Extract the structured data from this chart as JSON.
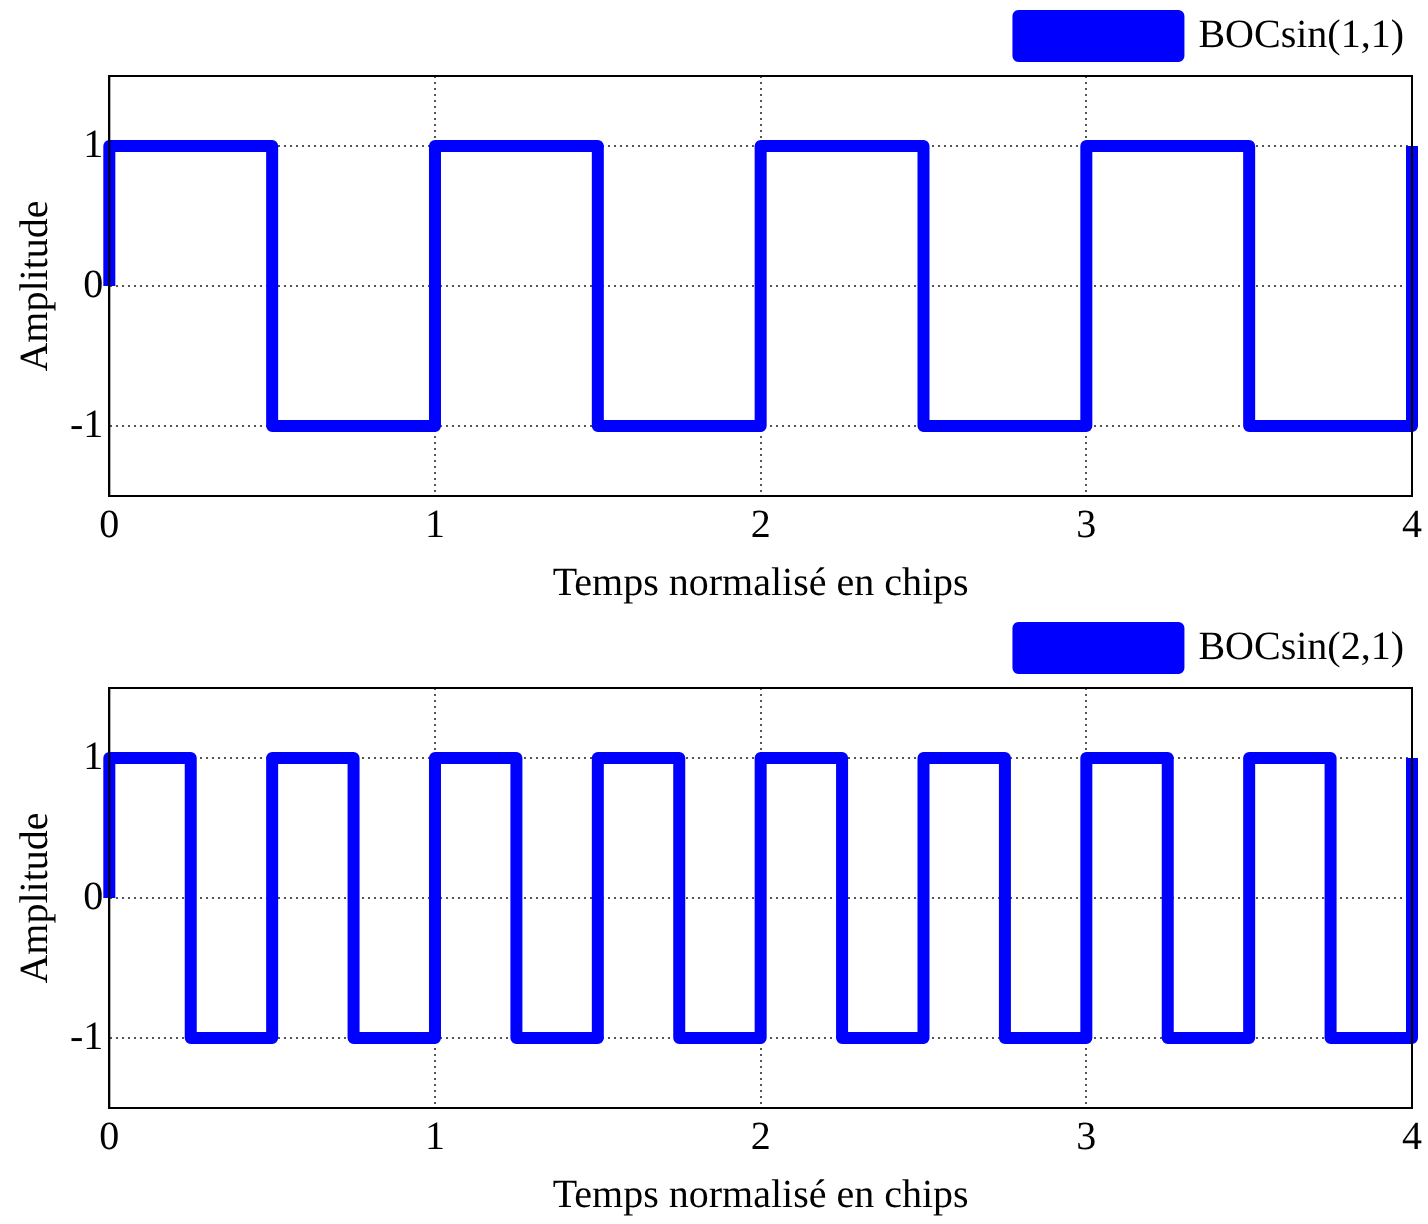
{
  "chart_data": [
    {
      "type": "line",
      "xlabel": "Temps normalisé en chips",
      "ylabel": "Amplitude",
      "xlim": [
        0,
        4
      ],
      "xticks": [
        0,
        1,
        2,
        3,
        4
      ],
      "ylim": [
        -1.5,
        1.5
      ],
      "yticks": [
        -1,
        0,
        1
      ],
      "grid": true,
      "legend": "top right",
      "line_style": "solid",
      "series": [
        {
          "name": "BOCsin(1,1)",
          "color": "#0000ff",
          "x": [
            0,
            0,
            0.5,
            0.5,
            1,
            1,
            1.5,
            1.5,
            2,
            2,
            2.5,
            2.5,
            3,
            3,
            3.5,
            3.5,
            4,
            4
          ],
          "values": [
            0,
            1,
            1,
            -1,
            -1,
            1,
            1,
            -1,
            -1,
            1,
            1,
            -1,
            -1,
            1,
            1,
            -1,
            -1,
            1
          ]
        }
      ]
    },
    {
      "type": "line",
      "xlabel": "Temps normalisé en chips",
      "ylabel": "Amplitude",
      "xlim": [
        0,
        4
      ],
      "xticks": [
        0,
        1,
        2,
        3,
        4
      ],
      "ylim": [
        -1.5,
        1.5
      ],
      "yticks": [
        -1,
        0,
        1
      ],
      "grid": true,
      "legend": "top right",
      "line_style": "solid",
      "series": [
        {
          "name": "BOCsin(2,1)",
          "color": "#0000ff",
          "x": [
            0,
            0,
            0.25,
            0.25,
            0.5,
            0.5,
            0.75,
            0.75,
            1,
            1,
            1.25,
            1.25,
            1.5,
            1.5,
            1.75,
            1.75,
            2,
            2,
            2.25,
            2.25,
            2.5,
            2.5,
            2.75,
            2.75,
            3,
            3,
            3.25,
            3.25,
            3.5,
            3.5,
            3.75,
            3.75,
            4,
            4
          ],
          "values": [
            0,
            1,
            1,
            -1,
            -1,
            1,
            1,
            -1,
            -1,
            1,
            1,
            -1,
            -1,
            1,
            1,
            -1,
            -1,
            1,
            1,
            -1,
            -1,
            1,
            1,
            -1,
            -1,
            1,
            1,
            -1,
            -1,
            1,
            1,
            -1,
            -1,
            1
          ]
        }
      ]
    }
  ]
}
